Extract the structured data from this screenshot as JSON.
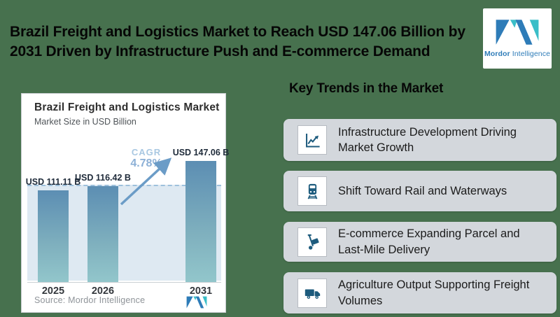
{
  "page": {
    "background_color": "#47714E"
  },
  "header": {
    "title": "Brazil Freight and Logistics Market to Reach USD 147.06 Billion by 2031 Driven by Infrastructure Push and E-commerce Demand"
  },
  "logo": {
    "brand_bold": "Mordor",
    "brand_rest": " Intelligence",
    "blue": "#2E7CB8",
    "teal": "#3ABEC8"
  },
  "chart_card": {
    "title": "Brazil Freight and Logistics Market",
    "subtitle": "Market Size in USD Billion",
    "cagr_label": "CAGR",
    "cagr_value": "4.78%",
    "source": "Source: Mordor Intelligence"
  },
  "chart_data": {
    "type": "bar",
    "title": "Brazil Freight and Logistics Market",
    "subtitle": "Market Size in USD Billion",
    "ylabel": "Market Size (USD Billion)",
    "categories": [
      "2025",
      "2026",
      "2031"
    ],
    "values": [
      111.11,
      116.42,
      147.06
    ],
    "bar_labels": [
      "USD 111.11 B",
      "USD 116.42 B",
      "USD 147.06 B"
    ],
    "cagr_percent": 4.78,
    "dashed_reference_value": 116.42,
    "grid": "off",
    "bar_gradient_top": "#5C8EB3",
    "bar_gradient_bottom": "#92C6CB",
    "plot_background": "#DEE9F2",
    "dashed_line_color": "#9DC0DC",
    "arrow_color": "#6B9CC7"
  },
  "trends": {
    "heading": "Key Trends in the Market",
    "items": [
      {
        "icon": "chart-growth-icon",
        "label": "Infrastructure Development Driving Market Growth"
      },
      {
        "icon": "train-icon",
        "label": "Shift Toward Rail and Waterways"
      },
      {
        "icon": "handtruck-icon",
        "label": "E-commerce Expanding Parcel and Last-Mile Delivery"
      },
      {
        "icon": "truck-icon",
        "label": "Agriculture Output Supporting Freight Volumes"
      }
    ]
  },
  "colors": {
    "background_green": "#47714E",
    "trend_box_gray": "#D3D7DC",
    "icon_blue": "#1D5B7D",
    "label_navy": "#1F2B3A",
    "cagr_light_blue": "#A9C8E2"
  }
}
